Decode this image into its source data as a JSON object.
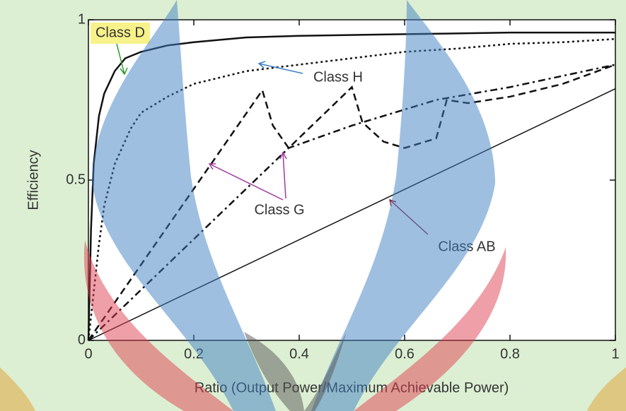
{
  "chart_data": {
    "type": "line",
    "xlabel": "Ratio (Output Power/Maximum Achievable Power)",
    "ylabel": "Efficiency",
    "xlim": [
      0,
      1
    ],
    "ylim": [
      0,
      1
    ],
    "xticks": [
      0,
      0.2,
      0.4,
      0.6,
      0.8,
      1
    ],
    "yticks": [
      0,
      0.5,
      1
    ],
    "series": [
      {
        "color": "#111111",
        "dash": "solid",
        "x": [
          0,
          0.005,
          0.01,
          0.02,
          0.03,
          0.05,
          0.07,
          0.1,
          0.15,
          0.2,
          0.3,
          0.4,
          0.6,
          0.8,
          1
        ],
        "values": [
          0,
          0.35,
          0.55,
          0.7,
          0.77,
          0.84,
          0.88,
          0.9,
          0.92,
          0.93,
          0.945,
          0.95,
          0.955,
          0.96,
          0.96
        ]
      },
      {
        "color": "#111111",
        "dash": "dotted",
        "x": [
          0,
          0.01,
          0.02,
          0.03,
          0.05,
          0.08,
          0.1,
          0.15,
          0.2,
          0.3,
          0.4,
          0.5,
          0.6,
          0.7,
          0.8,
          0.9,
          1
        ],
        "values": [
          0,
          0.15,
          0.3,
          0.42,
          0.55,
          0.66,
          0.71,
          0.76,
          0.8,
          0.84,
          0.86,
          0.88,
          0.9,
          0.91,
          0.925,
          0.93,
          0.94
        ]
      },
      {
        "color": "#111111",
        "dash": "dashed",
        "x": [
          0,
          0.33,
          0.35,
          0.38,
          0.5,
          0.52,
          0.56,
          0.6,
          0.66,
          0.68,
          0.72,
          0.8,
          0.9,
          1
        ],
        "values": [
          0,
          0.78,
          0.67,
          0.6,
          0.79,
          0.68,
          0.62,
          0.6,
          0.63,
          0.75,
          0.74,
          0.76,
          0.8,
          0.86
        ]
      },
      {
        "color": "#111111",
        "dash": "dashdot",
        "x": [
          0,
          0.38,
          0.5,
          0.66,
          0.8,
          1
        ],
        "values": [
          0,
          0.6,
          0.67,
          0.75,
          0.79,
          0.86
        ]
      },
      {
        "color": "#111111",
        "dash": "thin",
        "x": [
          0,
          1
        ],
        "values": [
          0,
          0.785
        ]
      }
    ],
    "annotations": [
      {
        "text": "Class D",
        "color": "#2e9a2e"
      },
      {
        "text": "Class H",
        "color": "#3a7fc4"
      },
      {
        "text": "Class G",
        "color": "#a03aa0"
      },
      {
        "text": "Class AB",
        "color": "#8b2a3a"
      }
    ]
  }
}
